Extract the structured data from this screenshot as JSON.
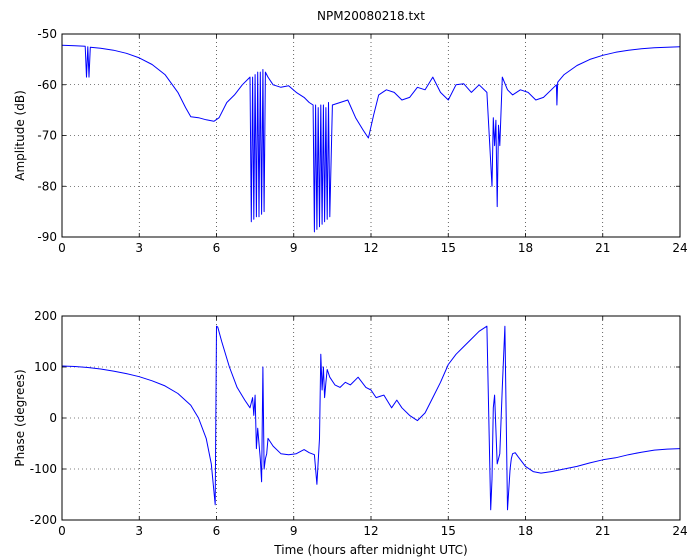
{
  "chart_data": [
    {
      "type": "line",
      "title": "NPM20080218.txt",
      "xlabel": "",
      "ylabel": "Amplitude (dB)",
      "xlim": [
        0,
        24
      ],
      "ylim": [
        -90,
        -50
      ],
      "xticks": [
        "0",
        "3",
        "6",
        "9",
        "12",
        "15",
        "18",
        "21",
        "24"
      ],
      "yticks": [
        "-50",
        "-60",
        "-70",
        "-80",
        "-90"
      ],
      "grid": true,
      "color": "#0000ff",
      "series": [
        {
          "x": [
            0,
            0.5,
            0.9,
            0.95,
            1.0,
            1.05,
            1.1,
            1.5,
            2,
            2.5,
            3,
            3.5,
            4,
            4.5,
            4.8,
            5.0,
            5.3,
            5.6,
            5.9,
            6.1,
            6.4,
            6.7,
            7.0,
            7.3,
            7.35,
            7.4,
            7.45,
            7.5,
            7.55,
            7.6,
            7.65,
            7.7,
            7.75,
            7.8,
            7.85,
            7.9,
            8.0,
            8.2,
            8.5,
            8.8,
            9.1,
            9.4,
            9.6,
            9.75,
            9.8,
            9.85,
            9.9,
            9.95,
            10.0,
            10.05,
            10.1,
            10.15,
            10.2,
            10.25,
            10.3,
            10.35,
            10.4,
            10.5,
            10.8,
            11.1,
            11.4,
            11.7,
            11.9,
            12.1,
            12.3,
            12.6,
            12.9,
            13.2,
            13.5,
            13.8,
            14.1,
            14.4,
            14.7,
            15.0,
            15.3,
            15.6,
            15.9,
            16.2,
            16.5,
            16.7,
            16.75,
            16.8,
            16.85,
            16.9,
            16.95,
            17.0,
            17.1,
            17.3,
            17.5,
            17.8,
            18.1,
            18.4,
            18.7,
            19.0,
            19.2,
            19.22,
            19.25,
            19.5,
            20,
            20.5,
            21,
            21.5,
            22,
            22.5,
            23,
            23.5,
            24
          ],
          "y": [
            -52.2,
            -52.3,
            -52.4,
            -58.5,
            -52.5,
            -58.5,
            -52.6,
            -52.8,
            -53.2,
            -53.8,
            -54.7,
            -56,
            -58,
            -61.5,
            -64.5,
            -66.3,
            -66.5,
            -66.9,
            -67.2,
            -66.5,
            -63.5,
            -62,
            -60,
            -58.5,
            -87,
            -58.5,
            -86.5,
            -58,
            -86,
            -57.5,
            -86,
            -57.5,
            -85.5,
            -57,
            -85,
            -57.5,
            -58.5,
            -60,
            -60.5,
            -60.2,
            -61.5,
            -62.5,
            -63.5,
            -64,
            -89,
            -64,
            -88.5,
            -64.5,
            -88,
            -64,
            -87.5,
            -64,
            -87,
            -64.5,
            -86.5,
            -63.5,
            -86,
            -64,
            -63.5,
            -63,
            -66.5,
            -69,
            -70.5,
            -66,
            -62,
            -61,
            -61.5,
            -63,
            -62.5,
            -60.5,
            -61,
            -58.5,
            -61.5,
            -63,
            -60,
            -59.8,
            -61.5,
            -60,
            -61.5,
            -80,
            -66.5,
            -72,
            -67,
            -84,
            -68,
            -72,
            -58.5,
            -61,
            -62,
            -61,
            -61.5,
            -63,
            -62.5,
            -61,
            -60,
            -64,
            -59.5,
            -58,
            -56.2,
            -55,
            -54.2,
            -53.6,
            -53.2,
            -52.9,
            -52.7,
            -52.6,
            -52.5
          ]
        }
      ]
    },
    {
      "type": "line",
      "title": "",
      "xlabel": "Time (hours after midnight UTC)",
      "ylabel": "Phase (degrees)",
      "xlim": [
        0,
        24
      ],
      "ylim": [
        -200,
        200
      ],
      "xticks": [
        "0",
        "3",
        "6",
        "9",
        "12",
        "15",
        "18",
        "21",
        "24"
      ],
      "yticks": [
        "200",
        "100",
        "0",
        "-100",
        "-200"
      ],
      "grid": true,
      "color": "#0000ff",
      "series": [
        {
          "x": [
            0,
            0.5,
            1,
            1.5,
            2,
            2.5,
            3,
            3.5,
            4,
            4.5,
            5,
            5.3,
            5.6,
            5.8,
            5.95,
            6.0,
            6.05,
            6.2,
            6.5,
            6.8,
            7.1,
            7.3,
            7.4,
            7.45,
            7.5,
            7.55,
            7.6,
            7.7,
            7.75,
            7.8,
            7.85,
            7.9,
            7.95,
            8.0,
            8.2,
            8.5,
            8.8,
            9.1,
            9.4,
            9.6,
            9.8,
            9.9,
            10.0,
            10.05,
            10.1,
            10.15,
            10.2,
            10.25,
            10.3,
            10.4,
            10.6,
            10.8,
            11.0,
            11.2,
            11.5,
            11.8,
            12.0,
            12.2,
            12.5,
            12.8,
            13.0,
            13.2,
            13.5,
            13.8,
            14.1,
            14.4,
            14.7,
            15.0,
            15.3,
            15.6,
            15.9,
            16.2,
            16.5,
            16.65,
            16.7,
            16.75,
            16.8,
            16.9,
            17.0,
            17.1,
            17.2,
            17.3,
            17.4,
            17.45,
            17.5,
            17.6,
            17.7,
            18.0,
            18.3,
            18.6,
            19,
            19.5,
            20,
            20.5,
            21,
            21.5,
            22,
            22.5,
            23,
            23.5,
            24
          ],
          "y": [
            102,
            101,
            99,
            96,
            92,
            87,
            81,
            73,
            63,
            48,
            25,
            0,
            -40,
            -90,
            -170,
            180,
            178,
            150,
            100,
            60,
            35,
            20,
            40,
            5,
            45,
            -60,
            -20,
            -80,
            -125,
            100,
            -100,
            -80,
            -70,
            -40,
            -55,
            -70,
            -72,
            -70,
            -62,
            -68,
            -72,
            -130,
            -40,
            125,
            55,
            100,
            40,
            70,
            95,
            80,
            65,
            60,
            70,
            65,
            80,
            60,
            55,
            40,
            45,
            20,
            35,
            20,
            5,
            -5,
            10,
            40,
            70,
            105,
            125,
            140,
            155,
            170,
            180,
            -180,
            -120,
            20,
            45,
            -90,
            -70,
            60,
            180,
            -180,
            -100,
            -80,
            -70,
            -68,
            -75,
            -95,
            -105,
            -108,
            -105,
            -100,
            -95,
            -88,
            -82,
            -78,
            -72,
            -67,
            -63,
            -61,
            -60
          ]
        }
      ]
    }
  ]
}
